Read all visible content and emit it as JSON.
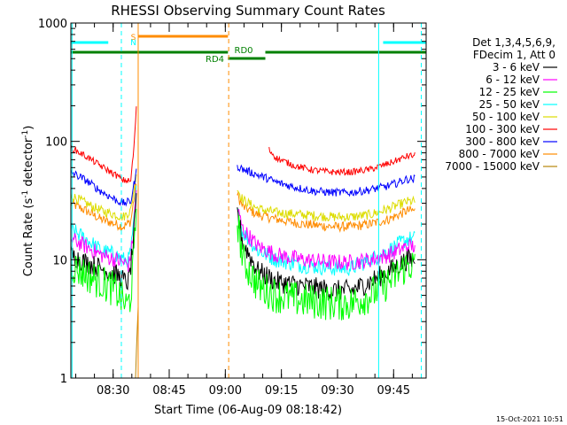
{
  "chart_data": {
    "type": "line",
    "title": "RHESSI Observing Summary Count Rates",
    "xlabel": "Start Time (06-Aug-09 08:18:42)",
    "ylabel_main": "Count Rate (s",
    "ylabel_sup1": "-1",
    "ylabel_mid": " detector",
    "ylabel_sup2": "-1",
    "ylabel_end": ")",
    "y_scale": "log",
    "ylim": [
      1,
      1000
    ],
    "xlim_minutes": [
      0,
      95
    ],
    "x_ticks": [
      {
        "t": 11.3,
        "label": "08:30"
      },
      {
        "t": 26.3,
        "label": "08:45"
      },
      {
        "t": 41.3,
        "label": "09:00"
      },
      {
        "t": 56.3,
        "label": "09:15"
      },
      {
        "t": 71.3,
        "label": "09:30"
      },
      {
        "t": 86.3,
        "label": "09:45"
      }
    ],
    "y_ticks": [
      {
        "v": 1,
        "label": "1"
      },
      {
        "v": 10,
        "label": "10"
      },
      {
        "v": 100,
        "label": "100"
      },
      {
        "v": 1000,
        "label": "1000"
      }
    ],
    "legend": {
      "placement": "right",
      "header1": "Det 1,3,4,5,6,9,",
      "header2": "FDecim 1, Att 0"
    },
    "series": [
      {
        "name": "3 - 6 keV",
        "color": "#000000",
        "noise": 0.13,
        "segments": [
          {
            "x": [
              0,
              4,
              8,
              12,
              13.5,
              14.5,
              15.5,
              16.5,
              17.5
            ],
            "y": [
              11,
              9.5,
              8.5,
              7.5,
              7,
              6.5,
              6.5,
              12,
              30
            ]
          },
          {
            "x": [
              44.5,
              46,
              50,
              55,
              62,
              70,
              75,
              80,
              85,
              90,
              92
            ],
            "y": [
              25,
              14,
              8,
              6.5,
              6,
              5.5,
              5.5,
              6.5,
              8,
              10,
              10
            ]
          }
        ]
      },
      {
        "name": "6 - 12 keV",
        "color": "#ff00ff",
        "noise": 0.1,
        "segments": [
          {
            "x": [
              0,
              4,
              8,
              12,
              14,
              15.5,
              16.5,
              17.5
            ],
            "y": [
              15,
              13,
              11,
              10,
              9.5,
              9,
              14,
              38
            ]
          },
          {
            "x": [
              44.5,
              46,
              50,
              55,
              62,
              70,
              75,
              80,
              85,
              90,
              92
            ],
            "y": [
              27,
              18,
              13,
              11,
              10,
              9.5,
              9.5,
              10,
              11,
              13,
              13
            ]
          }
        ]
      },
      {
        "name": "12 - 25 keV",
        "color": "#00ff00",
        "noise": 0.22,
        "segments": [
          {
            "x": [
              0,
              4,
              8,
              12,
              14,
              15,
              16,
              17,
              17.5
            ],
            "y": [
              9,
              7.5,
              6.5,
              5.5,
              4.5,
              4,
              5,
              12,
              28
            ]
          },
          {
            "x": [
              44.5,
              46,
              50,
              55,
              62,
              70,
              75,
              80,
              85,
              90,
              92
            ],
            "y": [
              22,
              10,
              6,
              5,
              4.5,
              4.3,
              4.3,
              5,
              6.5,
              9,
              9
            ]
          }
        ]
      },
      {
        "name": "25 - 50 keV",
        "color": "#00ffff",
        "noise": 0.1,
        "segments": [
          {
            "x": [
              0,
              4,
              8,
              12,
              14,
              15.5,
              16.5,
              17.5
            ],
            "y": [
              18,
              15,
              12,
              11,
              10,
              10,
              15,
              40
            ]
          },
          {
            "x": [
              44.5,
              46,
              50,
              55,
              62,
              70,
              75,
              80,
              85,
              90,
              92
            ],
            "y": [
              25,
              17,
              12,
              10,
              9,
              8.5,
              8.5,
              10,
              12,
              15,
              15
            ]
          }
        ]
      },
      {
        "name": "50 - 100 keV",
        "color": "#dddd00",
        "noise": 0.06,
        "segments": [
          {
            "x": [
              0,
              4,
              8,
              12,
              14,
              16,
              17.5
            ],
            "y": [
              35,
              30,
              26,
              24,
              23,
              26,
              55
            ]
          },
          {
            "x": [
              44.5,
              46,
              50,
              55,
              62,
              70,
              75,
              80,
              85,
              90,
              92
            ],
            "y": [
              40,
              32,
              27,
              25,
              24,
              23,
              23,
              24,
              27,
              31,
              31
            ]
          }
        ]
      },
      {
        "name": "100 - 300 keV",
        "color": "#ff0000",
        "noise": 0.04,
        "segments": [
          {
            "x": [
              0,
              4,
              8,
              12,
              14,
              16,
              17,
              17.5
            ],
            "y": [
              88,
              75,
              62,
              52,
              47,
              46,
              100,
              200
            ]
          },
          {
            "x": [
              53,
              55,
              60,
              65,
              70,
              75,
              80,
              85,
              90,
              92
            ],
            "y": [
              85,
              72,
              62,
              57,
              55,
              55,
              58,
              65,
              75,
              76
            ]
          }
        ]
      },
      {
        "name": "300 - 800 keV",
        "color": "#0000ff",
        "noise": 0.05,
        "segments": [
          {
            "x": [
              0,
              4,
              8,
              12,
              14,
              16,
              17.5
            ],
            "y": [
              55,
              47,
              38,
              32,
              30,
              31,
              55
            ]
          },
          {
            "x": [
              44.5,
              46,
              50,
              53,
              55,
              60,
              65,
              70,
              75,
              80,
              85,
              90,
              92
            ],
            "y": [
              62,
              58,
              52,
              48,
              45,
              41,
              38,
              37,
              37,
              39,
              42,
              48,
              48
            ]
          }
        ]
      },
      {
        "name": "800 - 7000 keV",
        "color": "#ff8c00",
        "noise": 0.06,
        "segments": [
          {
            "x": [
              0,
              4,
              8,
              12,
              14,
              16,
              17.5
            ],
            "y": [
              30,
              26,
              22,
              20,
              19,
              21,
              45
            ]
          },
          {
            "x": [
              44.5,
              46,
              50,
              55,
              62,
              70,
              75,
              80,
              85,
              90,
              92
            ],
            "y": [
              35,
              28,
              24,
              22,
              20,
              19,
              19,
              20,
              22,
              26,
              26
            ]
          }
        ]
      },
      {
        "name": "7000 - 15000 keV",
        "color": "#b8860b",
        "noise": 0.0,
        "segments": [
          {
            "x": [
              17.3,
              17.6,
              18.0
            ],
            "y": [
              1.0,
              2.0,
              4.0
            ]
          }
        ]
      }
    ],
    "annotations": {
      "att_state_label": "RD0",
      "decim_state_label": "RD4",
      "saa_letter": "S",
      "night_letter": "N"
    },
    "footer_date": "15-Oct-2021 10:51"
  }
}
